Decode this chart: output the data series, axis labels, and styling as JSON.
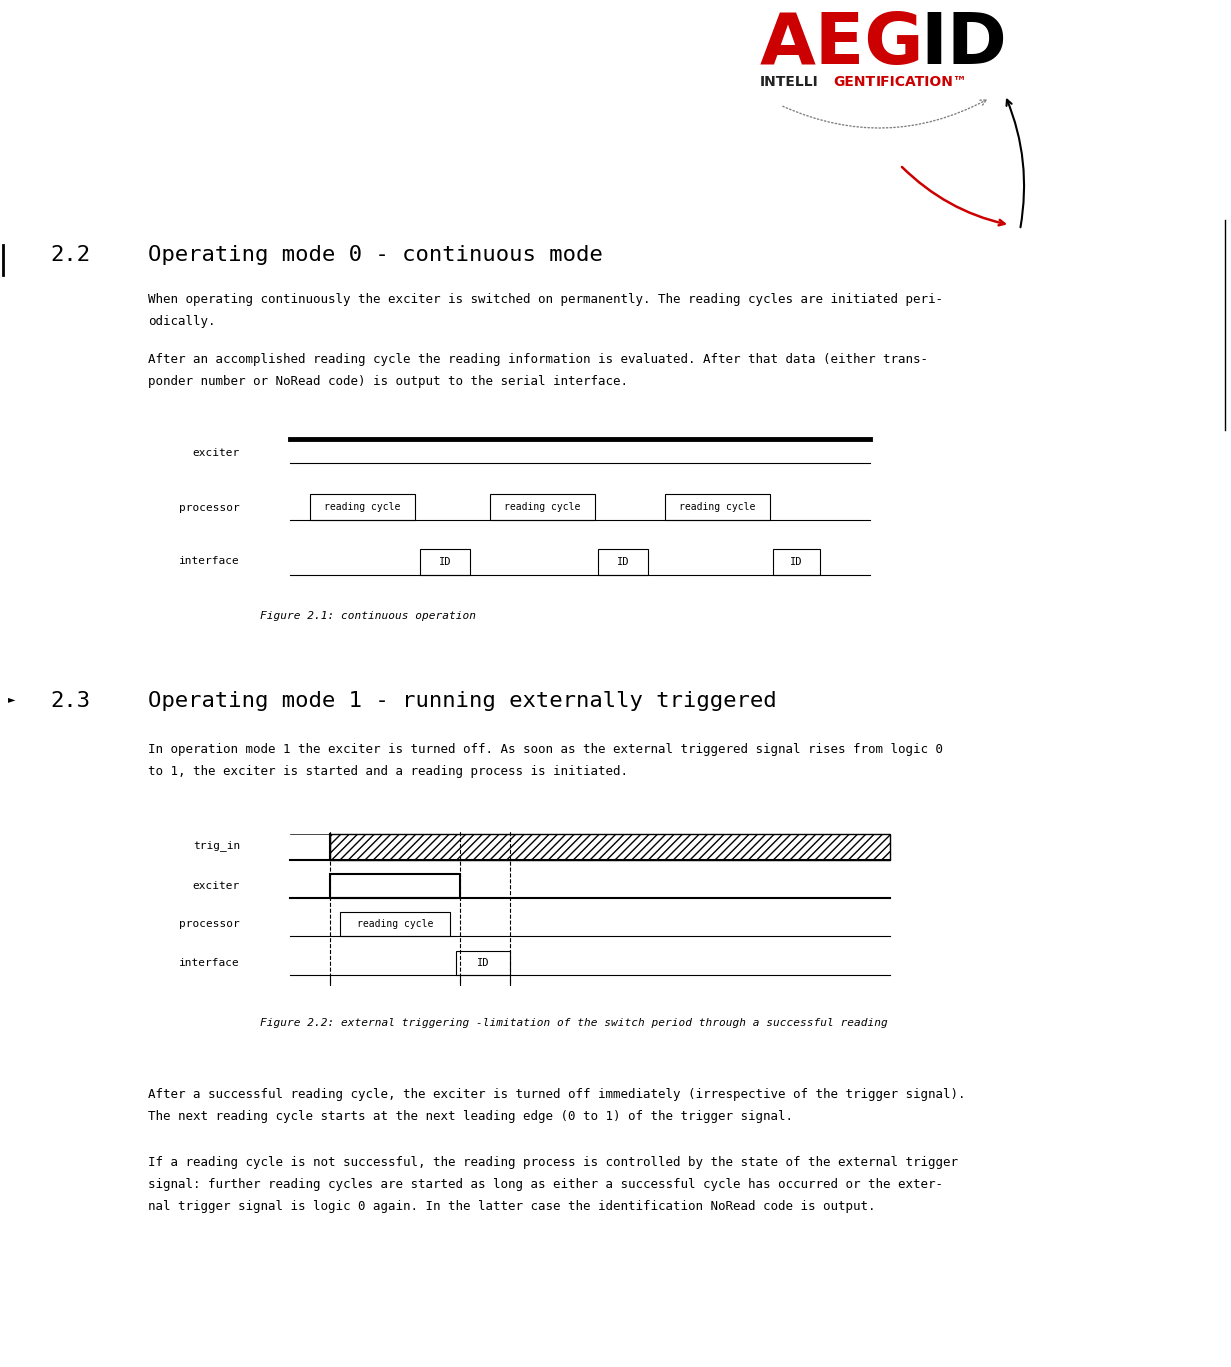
{
  "bg_color": "#ffffff",
  "page_width": 12.31,
  "page_height": 13.67,
  "para1a": "When operating continuously the exciter is switched on permanently. The reading cycles are initiated peri-",
  "para1b": "odically.",
  "para2a": "After an accomplished reading cycle the reading information is evaluated. After that data (either trans-",
  "para2b": "ponder number or NoRead code) is output to the serial interface.",
  "fig1_caption": "Figure 2.1: continuous operation",
  "para3a": "In operation mode 1 the exciter is turned off. As soon as the external triggered signal rises from logic 0",
  "para3b": "to 1, the exciter is started and a reading process is initiated.",
  "fig2_caption": "Figure 2.2: external triggering -limitation of the switch period through a successful reading",
  "para4a": "After a successful reading cycle, the exciter is turned off immediately (irrespective of the trigger signal).",
  "para4b": "The next reading cycle starts at the next leading edge (0 to 1) of the trigger signal.",
  "para5a": "If a reading cycle is not successful, the reading process is controlled by the state of the external trigger",
  "para5b": "signal: further reading cycles are started as long as either a successful cycle has occurred or the exter-",
  "para5c": "nal trigger signal is logic 0 again. In the latter case the identification NoRead code is output."
}
